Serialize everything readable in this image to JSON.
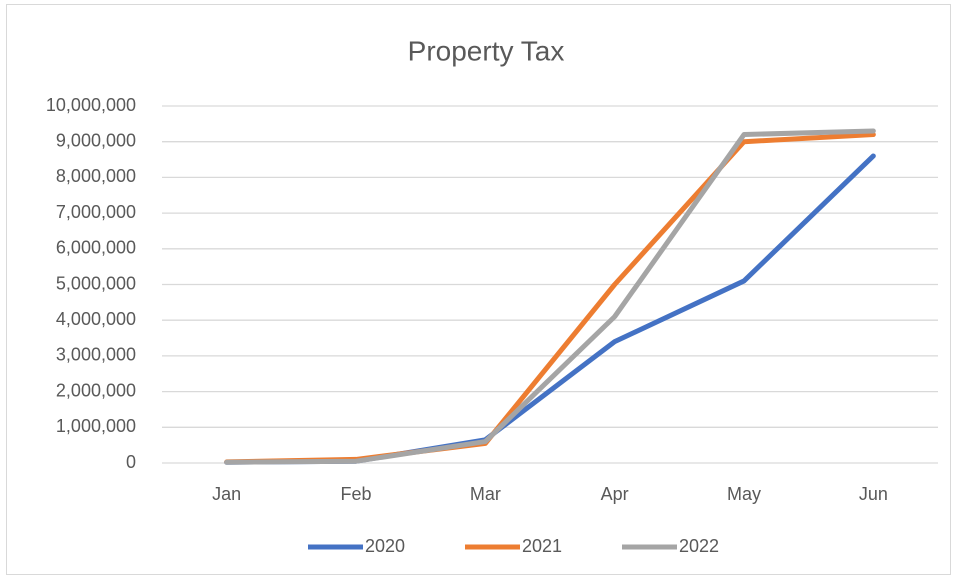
{
  "chart_data": {
    "type": "line",
    "title": "Property Tax",
    "categories": [
      "Jan",
      "Feb",
      "Mar",
      "Apr",
      "May",
      "Jun"
    ],
    "series": [
      {
        "name": "2020",
        "color": "#4472c4",
        "values": [
          20000,
          50000,
          650000,
          3400000,
          5100000,
          8600000
        ]
      },
      {
        "name": "2021",
        "color": "#ed7d31",
        "values": [
          30000,
          100000,
          550000,
          5000000,
          9000000,
          9200000
        ]
      },
      {
        "name": "2022",
        "color": "#a5a5a5",
        "values": [
          20000,
          50000,
          600000,
          4100000,
          9200000,
          9300000
        ]
      }
    ],
    "ylim": [
      0,
      10000000
    ],
    "yticks": [
      0,
      {
        "value": 1000000,
        "label": "1,000,000"
      },
      {
        "value": 2000000,
        "label": "2,000,000"
      },
      {
        "value": 3000000,
        "label": "3,000,000"
      },
      {
        "value": 4000000,
        "label": "4,000,000"
      },
      {
        "value": 5000000,
        "label": "5,000,000"
      },
      {
        "value": 6000000,
        "label": "6,000,000"
      },
      {
        "value": 7000000,
        "label": "7,000,000"
      },
      {
        "value": 8000000,
        "label": "8,000,000"
      },
      {
        "value": 9000000,
        "label": "9,000,000"
      },
      {
        "value": 10000000,
        "label": "10,000,000"
      }
    ],
    "grid": true,
    "legend": "bottom"
  }
}
